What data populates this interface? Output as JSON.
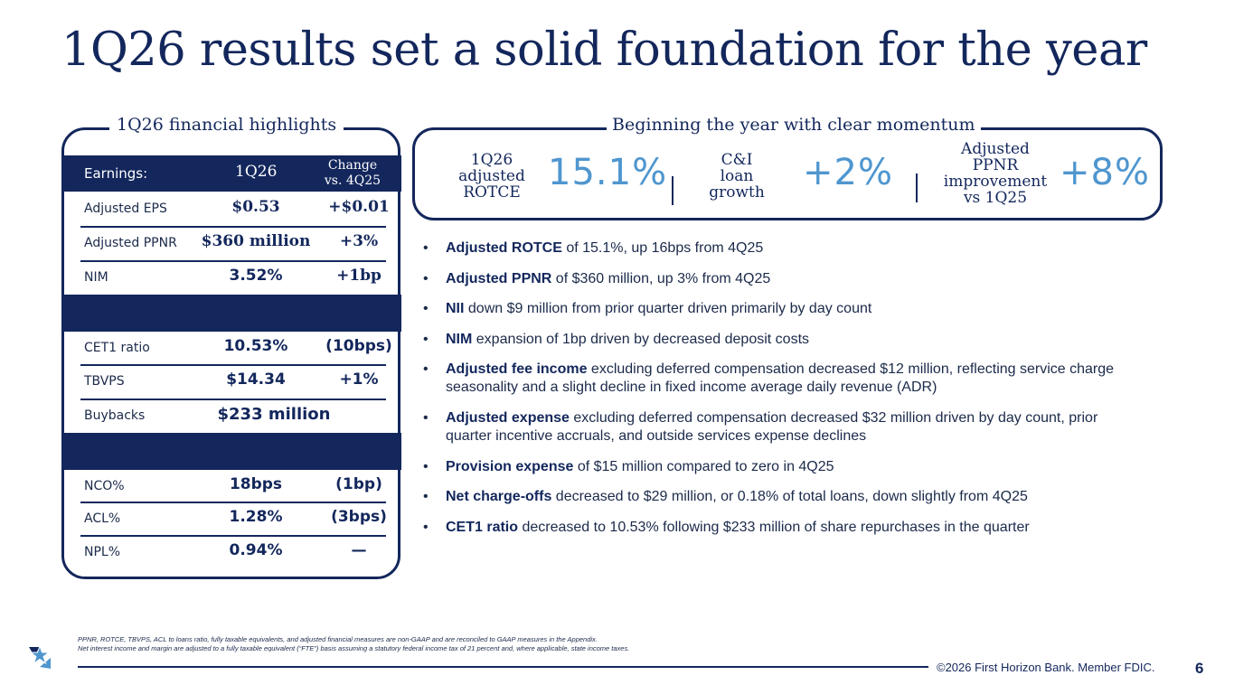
{
  "title": "1Q26 results set a solid foundation for the year",
  "left_panel": {
    "label": "1Q26 financial highlights",
    "header": {
      "col1": "Earnings:",
      "col2": "1Q26",
      "col3_line1": "Change",
      "col3_line2": "vs. 4Q25"
    },
    "rows": [
      {
        "label": "Adjusted EPS",
        "value": "$0.53",
        "change": "+$0.01"
      },
      {
        "label": "Adjusted PPNR",
        "value": "$360 million",
        "change": "+3%"
      },
      {
        "label": "NIM",
        "value": "3.52%",
        "change": "+1bp"
      },
      {
        "label": "CET1 ratio",
        "value": "10.53%",
        "change": "(10bps)"
      },
      {
        "label": "TBVPS",
        "value": "$14.34",
        "change": "+1%"
      },
      {
        "label": "Buybacks",
        "value": "$233 million"
      },
      {
        "label": "NCO%",
        "value": "18bps",
        "change": "(1bp)"
      },
      {
        "label": "ACL%",
        "value": "1.28%",
        "change": "(3bps)"
      },
      {
        "label": "NPL%",
        "value": "0.94%",
        "change": "—"
      }
    ]
  },
  "momentum": {
    "label": "Beginning the year with clear momentum",
    "metrics": [
      {
        "label_lines": [
          "1Q26",
          "adjusted",
          "ROTCE"
        ],
        "value": "15.1%"
      },
      {
        "label_lines": [
          "C&I",
          "loan",
          "growth"
        ],
        "value": "+2%"
      },
      {
        "label_lines": [
          "Adjusted",
          "PPNR",
          "improvement",
          "vs 1Q25"
        ],
        "value": "+8%"
      }
    ]
  },
  "bullets": [
    {
      "bold": "Adjusted ROTCE",
      "text": " of 15.1%, up 16bps from 4Q25"
    },
    {
      "bold": "Adjusted PPNR",
      "text": " of $360 million, up 3% from 4Q25"
    },
    {
      "bold": "NII",
      "text": " down $9 million from prior quarter driven primarily by day count"
    },
    {
      "bold": "NIM",
      "text": " expansion of 1bp driven by decreased deposit costs"
    },
    {
      "bold": "Adjusted fee income",
      "text": " excluding deferred compensation decreased $12 million, reflecting service charge seasonality and a slight decline in fixed income average daily revenue (ADR)"
    },
    {
      "bold": "Adjusted expense",
      "text": " excluding deferred compensation decreased $32 million driven by day count, prior quarter incentive accruals, and outside services expense declines"
    },
    {
      "bold": "Provision expense",
      "text": " of $15 million compared to zero in 4Q25"
    },
    {
      "bold": "Net charge-offs",
      "text": " decreased to $29 million, or 0.18% of total loans, down slightly from 4Q25"
    },
    {
      "bold": "CET1 ratio",
      "text": " decreased to 10.53% following $233 million of share repurchases in the quarter"
    }
  ],
  "bullet_glyph": "•",
  "footnotes": [
    "PPNR, ROTCE, TBVPS, ACL to loans ratio, fully taxable equivalents, and adjusted financial measures are non-GAAP and are reconciled to GAAP measures in the Appendix.",
    "Net interest income and margin are adjusted to a fully taxable equivalent (“FTE”) basis assuming a statutory federal income tax of 21 percent and, where applicable, state income taxes."
  ],
  "footer": {
    "copyright": "©2026 First Horizon Bank. Member FDIC.",
    "page": "6"
  },
  "colors": {
    "navy": "#13275c",
    "accent": "#4f96cf"
  }
}
